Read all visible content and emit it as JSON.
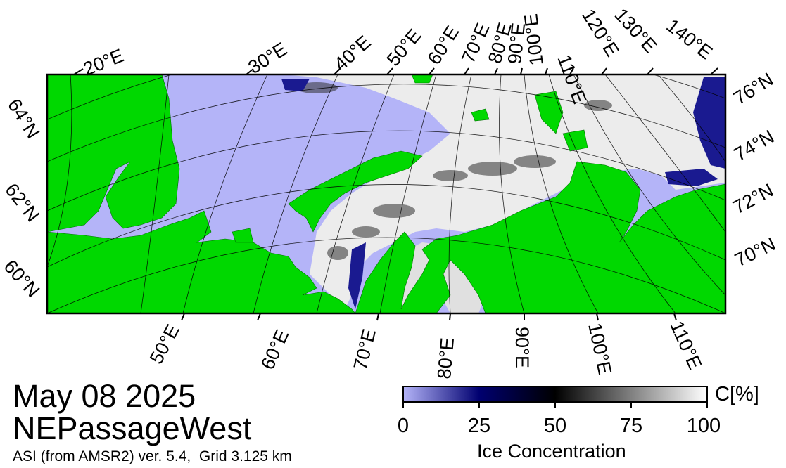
{
  "header": {
    "date": "May 08 2025",
    "region": "NEPassageWest",
    "product": "ASI (from AMSR2) ver. 5.4,  Grid 3.125 km"
  },
  "map": {
    "top_longitude_labels": [
      "20°E",
      "30°E",
      "40°E",
      "50°E",
      "60°E",
      "70°E",
      "80°E",
      "90°E",
      "100°E",
      "110°E",
      "120°E",
      "130°E",
      "140°E"
    ],
    "bottom_longitude_labels": [
      "50°E",
      "60°E",
      "70°E",
      "80°E",
      "90°E",
      "100°E",
      "110°E"
    ],
    "left_latitude_labels": [
      "64°N",
      "62°N",
      "60°N"
    ],
    "right_latitude_labels": [
      "76°N",
      "74°N",
      "72°N",
      "70°N"
    ],
    "colors": {
      "land": "#00d800",
      "open_water": "#b4b4f8",
      "ice_high": "#ffffff",
      "ice_mid": "#000000",
      "ice_low": "#000070",
      "frame": "#000000"
    }
  },
  "colorbar": {
    "unit": "C[%]",
    "caption": "Ice Concentration",
    "ticks": [
      "0",
      "25",
      "50",
      "75",
      "100"
    ],
    "range": [
      0,
      100
    ]
  }
}
